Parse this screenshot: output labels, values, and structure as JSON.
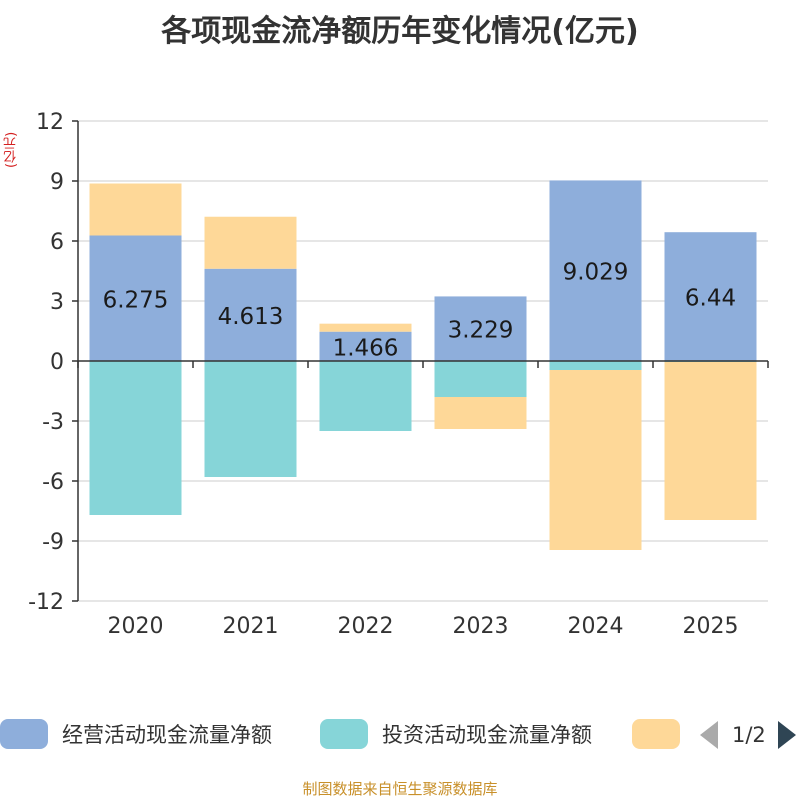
{
  "page": {
    "title": "各项现金流净额历年变化情况(亿元)",
    "unit_label": "(亿元)",
    "source": "制图数据来自恒生聚源数据库"
  },
  "legend": {
    "items": [
      {
        "label": "经营活动现金流量净额",
        "color": "#8eaedb"
      },
      {
        "label": "投资活动现金流量净额",
        "color": "#86d5d8"
      },
      {
        "label": "",
        "color": "#fed898"
      }
    ],
    "page_indicator": "1/2"
  },
  "chart_data": {
    "type": "bar",
    "stacked": true,
    "title": "各项现金流净额历年变化情况(亿元)",
    "ylabel": "(亿元)",
    "ylim": [
      -12,
      12
    ],
    "yticks": [
      12,
      9,
      6,
      3,
      0,
      -3,
      -6,
      -9,
      -12
    ],
    "categories": [
      "2020",
      "2021",
      "2022",
      "2023",
      "2024",
      "2025"
    ],
    "series": [
      {
        "name": "经营活动现金流量净额",
        "color": "#8eaedb",
        "values": [
          6.275,
          4.613,
          1.466,
          3.229,
          9.029,
          6.44
        ],
        "labels": [
          "6.275",
          "4.613",
          "1.466",
          "3.229",
          "9.029",
          "6.44"
        ]
      },
      {
        "name": "投资活动现金流量净额",
        "color": "#86d5d8",
        "values": [
          -7.7,
          -5.8,
          -3.5,
          -1.8,
          -0.45,
          -0.05
        ]
      },
      {
        "name": "",
        "color": "#fed898",
        "values": [
          2.6,
          2.6,
          0.4,
          -1.6,
          -9.0,
          -7.9
        ]
      }
    ],
    "grid": true
  }
}
